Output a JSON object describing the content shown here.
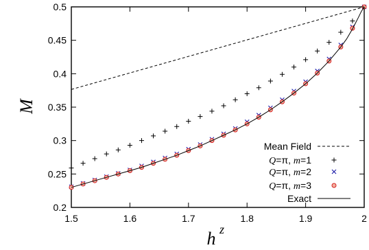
{
  "chart_data": {
    "type": "scatter",
    "xlabel": "h",
    "xlabel_sup": "z",
    "ylabel": "M",
    "xlim": [
      1.5,
      2.0
    ],
    "ylim": [
      0.2,
      0.5
    ],
    "xticks": [
      1.5,
      1.6,
      1.7,
      1.8,
      1.9,
      2.0
    ],
    "xtick_labels": [
      "1.5",
      "1.6",
      "1.7",
      "1.8",
      "1.9",
      "2"
    ],
    "yticks": [
      0.2,
      0.25,
      0.3,
      0.35,
      0.4,
      0.45,
      0.5
    ],
    "ytick_labels": [
      "0.2",
      "0.25",
      "0.3",
      "0.35",
      "0.4",
      "0.45",
      "0.5"
    ],
    "grid": false,
    "legend_position": "bottom-right",
    "series": [
      {
        "name": "Mean Field",
        "style": "dashed-line",
        "color": "#000000",
        "x": [
          1.5,
          2.0
        ],
        "y": [
          0.3765,
          0.5
        ]
      },
      {
        "name": "Q=π, m=1",
        "legend_parts": [
          [
            "Q",
            true
          ],
          [
            "=π, ",
            false
          ],
          [
            "m",
            true
          ],
          [
            "=1",
            false
          ]
        ],
        "style": "plus",
        "color": "#000000",
        "x": [
          1.5,
          1.52,
          1.54,
          1.56,
          1.58,
          1.6,
          1.62,
          1.64,
          1.66,
          1.68,
          1.7,
          1.72,
          1.74,
          1.76,
          1.78,
          1.8,
          1.82,
          1.84,
          1.86,
          1.88,
          1.9,
          1.92,
          1.94,
          1.96,
          1.98,
          2.0
        ],
        "y": [
          0.259,
          0.266,
          0.273,
          0.28,
          0.286,
          0.293,
          0.3,
          0.307,
          0.314,
          0.321,
          0.329,
          0.336,
          0.344,
          0.352,
          0.361,
          0.37,
          0.379,
          0.389,
          0.399,
          0.41,
          0.421,
          0.434,
          0.447,
          0.462,
          0.479,
          0.5
        ]
      },
      {
        "name": "Q=π, m=2",
        "legend_parts": [
          [
            "Q",
            true
          ],
          [
            "=π, ",
            false
          ],
          [
            "m",
            true
          ],
          [
            "=2",
            false
          ]
        ],
        "style": "cross",
        "color": "#1a1aa8",
        "x": [
          1.5,
          1.52,
          1.54,
          1.56,
          1.58,
          1.6,
          1.62,
          1.64,
          1.66,
          1.68,
          1.7,
          1.72,
          1.74,
          1.76,
          1.78,
          1.8,
          1.82,
          1.84,
          1.86,
          1.88,
          1.9,
          1.92,
          1.94,
          1.96,
          1.98,
          2.0
        ],
        "y": [
          0.231,
          0.236,
          0.241,
          0.246,
          0.251,
          0.256,
          0.262,
          0.268,
          0.274,
          0.28,
          0.287,
          0.294,
          0.302,
          0.31,
          0.318,
          0.328,
          0.338,
          0.349,
          0.361,
          0.374,
          0.388,
          0.404,
          0.422,
          0.443,
          0.47,
          0.5
        ]
      },
      {
        "name": "Q=π, m=3",
        "legend_parts": [
          [
            "Q",
            true
          ],
          [
            "=π, ",
            false
          ],
          [
            "m",
            true
          ],
          [
            "=3",
            false
          ]
        ],
        "style": "circle",
        "color": "#d42020",
        "fill": "#f2b0a0",
        "x": [
          1.5,
          1.52,
          1.54,
          1.56,
          1.58,
          1.6,
          1.62,
          1.64,
          1.66,
          1.68,
          1.7,
          1.72,
          1.74,
          1.76,
          1.78,
          1.8,
          1.82,
          1.84,
          1.86,
          1.88,
          1.9,
          1.92,
          1.94,
          1.96,
          1.98,
          2.0
        ],
        "y": [
          0.23,
          0.235,
          0.24,
          0.245,
          0.25,
          0.255,
          0.26,
          0.266,
          0.272,
          0.278,
          0.285,
          0.292,
          0.3,
          0.308,
          0.316,
          0.325,
          0.335,
          0.346,
          0.358,
          0.371,
          0.385,
          0.401,
          0.419,
          0.44,
          0.468,
          0.5
        ]
      },
      {
        "name": "Exact",
        "style": "solid-line",
        "color": "#000000",
        "x": [
          1.5,
          1.52,
          1.54,
          1.56,
          1.58,
          1.6,
          1.62,
          1.64,
          1.66,
          1.68,
          1.7,
          1.72,
          1.74,
          1.76,
          1.78,
          1.8,
          1.82,
          1.84,
          1.86,
          1.88,
          1.9,
          1.92,
          1.94,
          1.96,
          1.97,
          1.98,
          1.99,
          1.995,
          2.0
        ],
        "y": [
          0.23,
          0.235,
          0.24,
          0.245,
          0.25,
          0.255,
          0.26,
          0.266,
          0.272,
          0.278,
          0.285,
          0.292,
          0.3,
          0.308,
          0.316,
          0.325,
          0.335,
          0.346,
          0.358,
          0.371,
          0.385,
          0.401,
          0.419,
          0.44,
          0.452,
          0.467,
          0.484,
          0.493,
          0.5
        ]
      }
    ]
  }
}
